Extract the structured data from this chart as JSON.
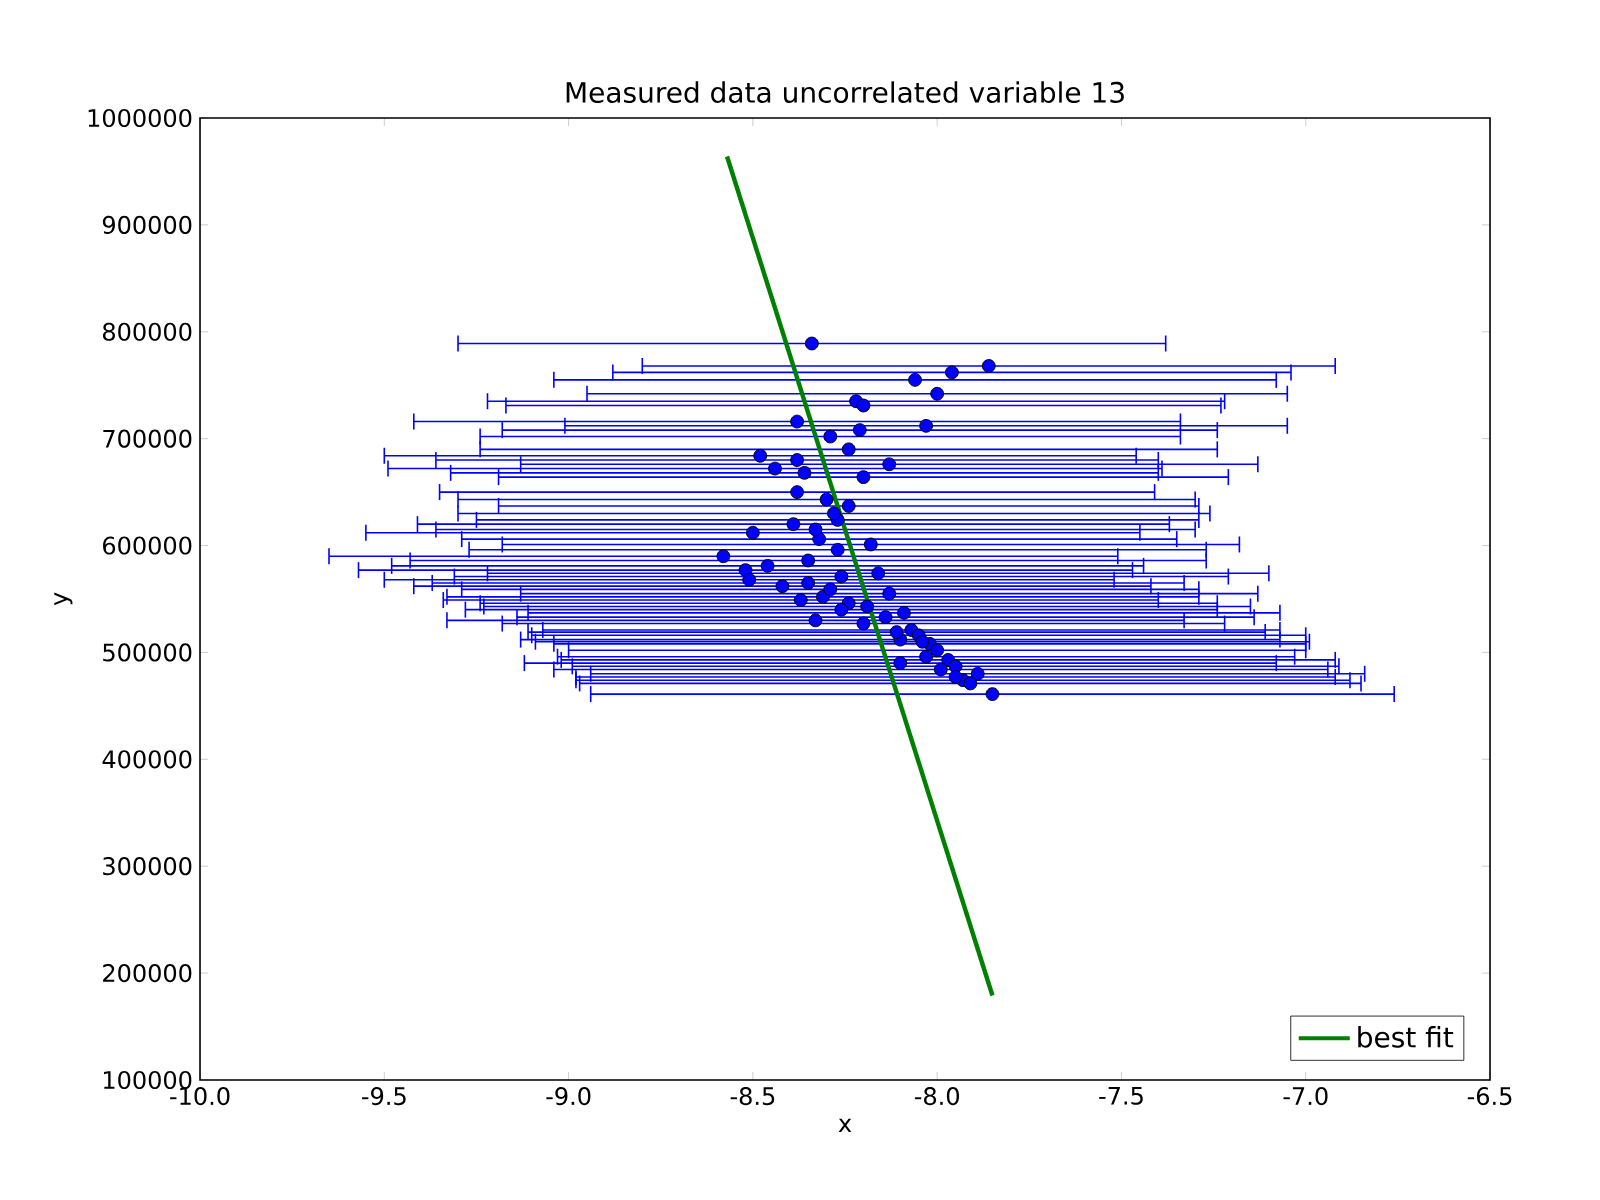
{
  "chart_data": {
    "type": "scatter",
    "title": "Measured data uncorrelated variable 13",
    "xlabel": "x",
    "ylabel": "y",
    "xlim": [
      -10,
      -6.5
    ],
    "ylim": [
      100000,
      1000000
    ],
    "xticks": [
      {
        "value": -10,
        "label": "-10.0"
      },
      {
        "value": -9.5,
        "label": "-9.5"
      },
      {
        "value": -9,
        "label": "-9.0"
      },
      {
        "value": -8.5,
        "label": "-8.5"
      },
      {
        "value": -8,
        "label": "-8.0"
      },
      {
        "value": -7.5,
        "label": "-7.5"
      },
      {
        "value": -7,
        "label": "-7.0"
      },
      {
        "value": -6.5,
        "label": "-6.5"
      }
    ],
    "yticks": [
      100000,
      200000,
      300000,
      400000,
      500000,
      600000,
      700000,
      800000,
      900000,
      1000000
    ],
    "legend": "bottom right",
    "grid": false,
    "series": [
      {
        "marker": "circle",
        "color": "#0000ff",
        "x": [
          -8.34,
          -7.86,
          -7.96,
          -8.06,
          -8.0,
          -8.22,
          -8.2,
          -8.38,
          -8.03,
          -8.29,
          -8.24,
          -8.21,
          -8.48,
          -8.38,
          -8.13,
          -8.44,
          -8.36,
          -8.2,
          -8.38,
          -8.3,
          -8.24,
          -8.39,
          -8.27,
          -8.32,
          -8.5,
          -8.58,
          -8.52,
          -8.51,
          -8.46,
          -8.35,
          -8.27,
          -8.18,
          -8.35,
          -8.26,
          -8.42,
          -8.37,
          -8.31,
          -8.24,
          -8.16,
          -8.13,
          -8.33,
          -8.26,
          -8.2,
          -8.14,
          -8.1,
          -8.07,
          -8.05,
          -8.02,
          -8.0,
          -7.97,
          -8.03,
          -7.95,
          -7.93,
          -7.89,
          -7.95,
          -8.1,
          -7.85,
          -8.28,
          -8.33,
          -8.29,
          -8.19,
          -8.09,
          -8.11,
          -8.04,
          -7.99,
          -7.91
        ],
        "values": [
          789000,
          768000,
          762000,
          755000,
          742000,
          735000,
          731000,
          716000,
          712000,
          702000,
          690000,
          708000,
          684000,
          680000,
          676000,
          672000,
          668000,
          664000,
          650000,
          643000,
          637000,
          620000,
          624000,
          606000,
          612000,
          590000,
          577000,
          568000,
          581000,
          586000,
          596000,
          601000,
          565000,
          571000,
          562000,
          549000,
          552000,
          546000,
          574000,
          555000,
          530000,
          540000,
          527000,
          533000,
          512000,
          521000,
          516000,
          508000,
          502000,
          493000,
          496000,
          487000,
          474000,
          480000,
          477000,
          490000,
          461000,
          630000,
          615000,
          559000,
          543000,
          537000,
          519000,
          510000,
          484000,
          471000
        ],
        "xerrors": [
          0.96,
          0.94,
          0.92,
          0.98,
          0.95,
          1.0,
          0.97,
          1.04,
          0.98,
          0.95,
          1.0,
          0.97,
          1.02,
          0.98,
          1.0,
          1.05,
          0.96,
          0.99,
          0.97,
          1.0,
          0.95,
          1.02,
          0.98,
          0.97,
          1.05,
          1.07,
          1.05,
          0.99,
          1.02,
          1.08,
          1.0,
          1.0,
          1.02,
          1.05,
          1.0,
          0.97,
          1.02,
          1.0,
          1.06,
          1.0,
          1.0,
          1.02,
          0.98,
          1.0,
          1.03,
          1.0,
          1.05,
          1.02,
          1.0,
          1.05,
          1.0,
          1.04,
          1.05,
          1.05,
          1.03,
          1.02,
          1.09,
          1.02,
          1.03,
          1.0,
          1.04,
          1.02,
          1.0,
          1.05,
          1.05,
          1.06
        ]
      },
      {
        "type": "line",
        "name": "best fit",
        "color": "#008000",
        "marker": "none",
        "x": [
          -8.57,
          -7.85
        ],
        "values": [
          964000,
          179000
        ]
      }
    ]
  }
}
